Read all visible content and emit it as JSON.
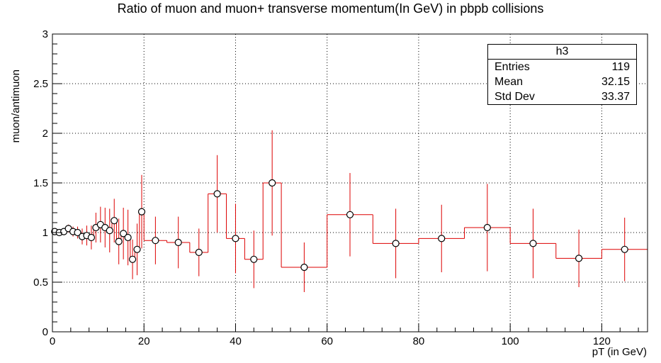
{
  "chart_data": {
    "type": "scatter",
    "title": "Ratio of muon and muon+ transverse momentum(In GeV) in pbpb collisions",
    "xlabel": "pT (in GeV)",
    "ylabel": "muon/antimuon",
    "xlim": [
      0,
      130
    ],
    "ylim": [
      0,
      3
    ],
    "xticks": [
      0,
      20,
      40,
      60,
      80,
      100,
      120
    ],
    "yticks": [
      0,
      0.5,
      1,
      1.5,
      2,
      2.5,
      3
    ],
    "ytick_labels": [
      "0",
      "0.5",
      "1",
      "1.5",
      "2",
      "2.5",
      "3"
    ],
    "grid": true,
    "series_color": "#dd0000",
    "points": [
      {
        "x_low": 0,
        "x_high": 1,
        "y": 1.01,
        "err": 0.02
      },
      {
        "x_low": 1,
        "x_high": 2,
        "y": 1.0,
        "err": 0.02
      },
      {
        "x_low": 2,
        "x_high": 3,
        "y": 1.01,
        "err": 0.03
      },
      {
        "x_low": 3,
        "x_high": 4,
        "y": 1.04,
        "err": 0.04
      },
      {
        "x_low": 4,
        "x_high": 5,
        "y": 1.01,
        "err": 0.05
      },
      {
        "x_low": 5,
        "x_high": 6,
        "y": 1.0,
        "err": 0.06
      },
      {
        "x_low": 6,
        "x_high": 7,
        "y": 0.96,
        "err": 0.08
      },
      {
        "x_low": 7,
        "x_high": 8,
        "y": 0.97,
        "err": 0.1
      },
      {
        "x_low": 8,
        "x_high": 9,
        "y": 0.95,
        "err": 0.12
      },
      {
        "x_low": 9,
        "x_high": 10,
        "y": 1.05,
        "err": 0.15
      },
      {
        "x_low": 10,
        "x_high": 11,
        "y": 1.08,
        "err": 0.18
      },
      {
        "x_low": 11,
        "x_high": 12,
        "y": 1.05,
        "err": 0.2
      },
      {
        "x_low": 12,
        "x_high": 13,
        "y": 1.02,
        "err": 0.22
      },
      {
        "x_low": 13,
        "x_high": 14,
        "y": 1.12,
        "err": 0.22
      },
      {
        "x_low": 14,
        "x_high": 15,
        "y": 0.91,
        "err": 0.23
      },
      {
        "x_low": 15,
        "x_high": 16,
        "y": 0.99,
        "err": 0.26
      },
      {
        "x_low": 16,
        "x_high": 17,
        "y": 0.95,
        "err": 0.28
      },
      {
        "x_low": 17,
        "x_high": 18,
        "y": 0.73,
        "err": 0.2
      },
      {
        "x_low": 18,
        "x_high": 19,
        "y": 0.83,
        "err": 0.26
      },
      {
        "x_low": 19,
        "x_high": 20,
        "y": 1.21,
        "err": 0.37
      },
      {
        "x_low": 20,
        "x_high": 25,
        "y": 0.92,
        "err": 0.24
      },
      {
        "x_low": 25,
        "x_high": 30,
        "y": 0.9,
        "err": 0.26
      },
      {
        "x_low": 30,
        "x_high": 34,
        "y": 0.8,
        "err": 0.24
      },
      {
        "x_low": 34,
        "x_high": 38,
        "y": 1.39,
        "err": 0.39
      },
      {
        "x_low": 38,
        "x_high": 42,
        "y": 0.94,
        "err": 0.35
      },
      {
        "x_low": 42,
        "x_high": 46,
        "y": 0.73,
        "err": 0.29
      },
      {
        "x_low": 46,
        "x_high": 50,
        "y": 1.5,
        "err": 0.53
      },
      {
        "x_low": 50,
        "x_high": 60,
        "y": 0.65,
        "err": 0.25
      },
      {
        "x_low": 60,
        "x_high": 70,
        "y": 1.18,
        "err": 0.42
      },
      {
        "x_low": 70,
        "x_high": 80,
        "y": 0.89,
        "err": 0.35
      },
      {
        "x_low": 80,
        "x_high": 90,
        "y": 0.94,
        "err": 0.34
      },
      {
        "x_low": 90,
        "x_high": 100,
        "y": 1.05,
        "err": 0.44
      },
      {
        "x_low": 100,
        "x_high": 110,
        "y": 0.89,
        "err": 0.35
      },
      {
        "x_low": 110,
        "x_high": 120,
        "y": 0.74,
        "err": 0.29
      },
      {
        "x_low": 120,
        "x_high": 130,
        "y": 0.83,
        "err": 0.32
      }
    ]
  },
  "stats_box": {
    "name": "h3",
    "entries_label": "Entries",
    "entries_value": "119",
    "mean_label": "Mean",
    "mean_value": "32.15",
    "stddev_label": "Std Dev",
    "stddev_value": "33.37"
  }
}
